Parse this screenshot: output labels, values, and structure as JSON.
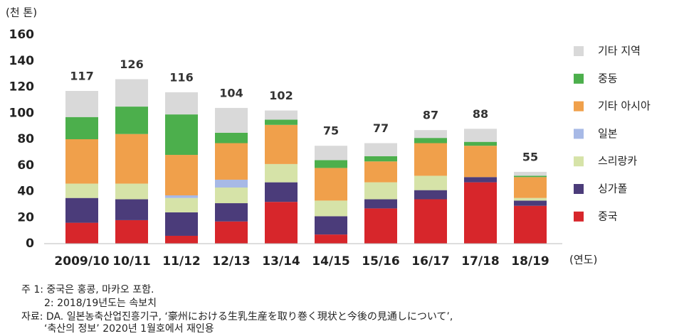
{
  "chart_data": {
    "type": "bar",
    "stacked": true,
    "y_label": "(천 톤)",
    "x_label": "(연도)",
    "categories": [
      "2009/10",
      "10/11",
      "11/12",
      "12/13",
      "13/14",
      "14/15",
      "15/16",
      "16/17",
      "17/18",
      "18/19"
    ],
    "series": [
      {
        "name": "중국",
        "color": "#d7262b",
        "values": [
          16,
          18,
          6,
          17,
          32,
          7,
          27,
          34,
          47,
          29
        ]
      },
      {
        "name": "싱가폴",
        "color": "#4b3c7a",
        "values": [
          19,
          16,
          18,
          14,
          15,
          14,
          7,
          7,
          4,
          4
        ]
      },
      {
        "name": "스리랑카",
        "color": "#d6e3a8",
        "values": [
          11,
          12,
          11,
          12,
          14,
          12,
          13,
          11,
          0,
          2
        ]
      },
      {
        "name": "일본",
        "color": "#a7b9e6",
        "values": [
          0,
          0,
          2,
          6,
          0,
          0,
          0,
          0,
          0,
          0
        ]
      },
      {
        "name": "기타 아시아",
        "color": "#f0a04b",
        "values": [
          34,
          38,
          31,
          28,
          30,
          25,
          16,
          25,
          24,
          16
        ]
      },
      {
        "name": "중동",
        "color": "#4caf4c",
        "values": [
          17,
          21,
          31,
          8,
          4,
          6,
          4,
          4,
          3,
          1
        ]
      },
      {
        "name": "기타 지역",
        "color": "#d9d9d9",
        "values": [
          20,
          21,
          17,
          19,
          7,
          11,
          10,
          6,
          10,
          3
        ]
      }
    ],
    "totals": [
      117,
      126,
      116,
      104,
      102,
      75,
      77,
      87,
      88,
      55
    ],
    "ylim": [
      0,
      160
    ],
    "yticks": [
      0,
      20,
      40,
      60,
      80,
      100,
      120,
      140,
      160
    ],
    "notes": [
      "주 1: 중국은 홍콩, 마카오 포함.",
      "2: 2018/19년도는 속보치",
      "자료: DA. 일본농축산업진흥기구, ‘豪州における生乳生産を取り巻く現状と今後の見通しについて’,",
      "‘축산의 정보’ 2020년 1월호에서 재인용"
    ]
  }
}
